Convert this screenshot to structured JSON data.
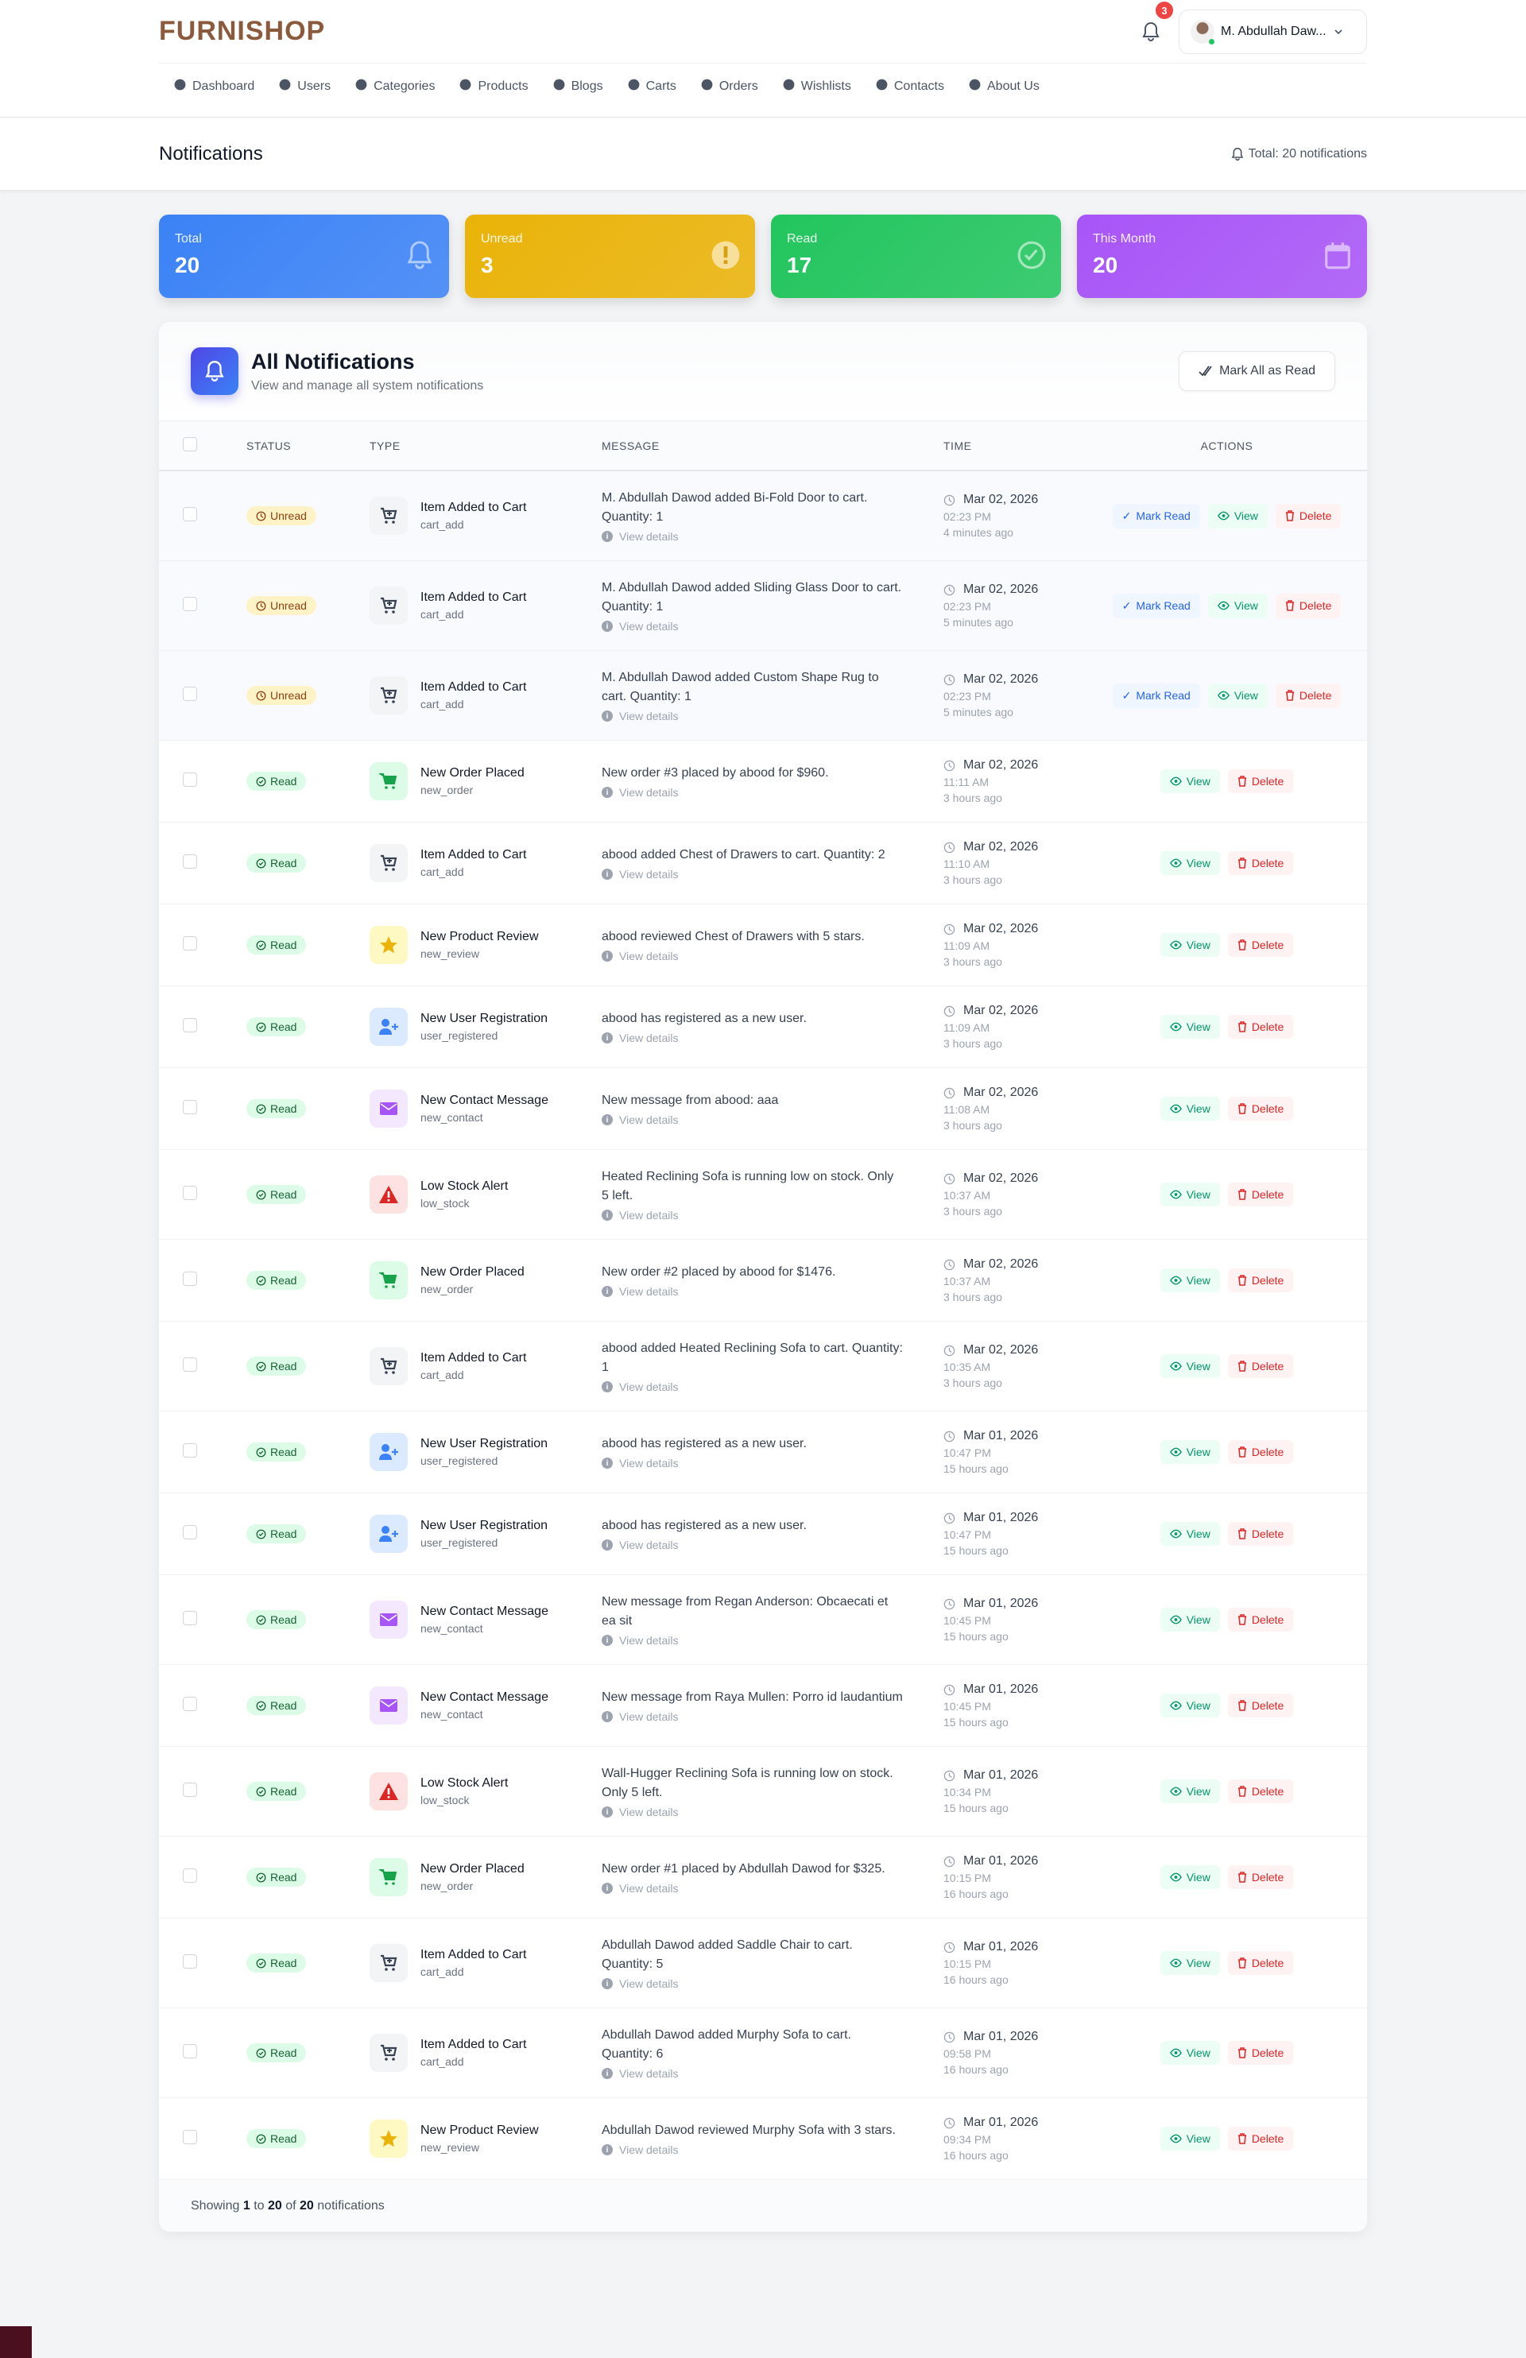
{
  "app": {
    "logo": "FURNISHOP",
    "notif_count": "3",
    "user_name": "M. Abdullah Daw..."
  },
  "nav": [
    {
      "label": "Dashboard",
      "icon": "dashboard-icon"
    },
    {
      "label": "Users",
      "icon": "users-icon"
    },
    {
      "label": "Categories",
      "icon": "categories-icon"
    },
    {
      "label": "Products",
      "icon": "box-icon"
    },
    {
      "label": "Blogs",
      "icon": "edit-icon"
    },
    {
      "label": "Carts",
      "icon": "cart-icon"
    },
    {
      "label": "Orders",
      "icon": "truck-icon"
    },
    {
      "label": "Wishlists",
      "icon": "heart-icon"
    },
    {
      "label": "Contacts",
      "icon": "phone-icon"
    },
    {
      "label": "About Us",
      "icon": "info-icon"
    }
  ],
  "page": {
    "title": "Notifications",
    "total": "Total: 20 notifications"
  },
  "stats": [
    {
      "label": "Total",
      "value": "20",
      "color": "#3b82f6",
      "icon": "bell-icon"
    },
    {
      "label": "Unread",
      "value": "3",
      "color": "#eab308",
      "icon": "exclamation-icon"
    },
    {
      "label": "Read",
      "value": "17",
      "color": "#22c55e",
      "icon": "check-circle-icon"
    },
    {
      "label": "This Month",
      "value": "20",
      "color": "#a855f7",
      "icon": "calendar-icon"
    }
  ],
  "panel": {
    "title": "All Notifications",
    "subtitle": "View and manage all system notifications",
    "mark_all": "Mark All as Read"
  },
  "columns": {
    "status": "STATUS",
    "type": "TYPE",
    "message": "MESSAGE",
    "time": "TIME",
    "actions": "ACTIONS"
  },
  "actions": {
    "mark_read": "Mark Read",
    "view": "View",
    "delete": "Delete",
    "view_details": "View details"
  },
  "rows": [
    {
      "status": "Unread",
      "title": "Item Added to Cart",
      "code": "cart_add",
      "kind": "cart",
      "message": "M. Abdullah Dawod added Bi-Fold Door to cart. Quantity: 1",
      "date": "Mar 02, 2026",
      "time": "02:23 PM",
      "ago": "4 minutes ago"
    },
    {
      "status": "Unread",
      "title": "Item Added to Cart",
      "code": "cart_add",
      "kind": "cart",
      "message": "M. Abdullah Dawod added Sliding Glass Door to cart. Quantity: 1",
      "date": "Mar 02, 2026",
      "time": "02:23 PM",
      "ago": "5 minutes ago"
    },
    {
      "status": "Unread",
      "title": "Item Added to Cart",
      "code": "cart_add",
      "kind": "cart",
      "message": "M. Abdullah Dawod added Custom Shape Rug to cart. Quantity: 1",
      "date": "Mar 02, 2026",
      "time": "02:23 PM",
      "ago": "5 minutes ago"
    },
    {
      "status": "Read",
      "title": "New Order Placed",
      "code": "new_order",
      "kind": "order",
      "message": "New order #3 placed by abood for $960.",
      "date": "Mar 02, 2026",
      "time": "11:11 AM",
      "ago": "3 hours ago"
    },
    {
      "status": "Read",
      "title": "Item Added to Cart",
      "code": "cart_add",
      "kind": "cart",
      "message": "abood added Chest of Drawers to cart. Quantity: 2",
      "date": "Mar 02, 2026",
      "time": "11:10 AM",
      "ago": "3 hours ago"
    },
    {
      "status": "Read",
      "title": "New Product Review",
      "code": "new_review",
      "kind": "review",
      "message": "abood reviewed Chest of Drawers with 5 stars.",
      "date": "Mar 02, 2026",
      "time": "11:09 AM",
      "ago": "3 hours ago"
    },
    {
      "status": "Read",
      "title": "New User Registration",
      "code": "user_registered",
      "kind": "user",
      "message": "abood has registered as a new user.",
      "date": "Mar 02, 2026",
      "time": "11:09 AM",
      "ago": "3 hours ago"
    },
    {
      "status": "Read",
      "title": "New Contact Message",
      "code": "new_contact",
      "kind": "contact",
      "message": "New message from abood: aaa",
      "date": "Mar 02, 2026",
      "time": "11:08 AM",
      "ago": "3 hours ago"
    },
    {
      "status": "Read",
      "title": "Low Stock Alert",
      "code": "low_stock",
      "kind": "stock",
      "message": "Heated Reclining Sofa is running low on stock. Only 5 left.",
      "date": "Mar 02, 2026",
      "time": "10:37 AM",
      "ago": "3 hours ago"
    },
    {
      "status": "Read",
      "title": "New Order Placed",
      "code": "new_order",
      "kind": "order",
      "message": "New order #2 placed by abood for $1476.",
      "date": "Mar 02, 2026",
      "time": "10:37 AM",
      "ago": "3 hours ago"
    },
    {
      "status": "Read",
      "title": "Item Added to Cart",
      "code": "cart_add",
      "kind": "cart",
      "message": "abood added Heated Reclining Sofa to cart. Quantity: 1",
      "date": "Mar 02, 2026",
      "time": "10:35 AM",
      "ago": "3 hours ago"
    },
    {
      "status": "Read",
      "title": "New User Registration",
      "code": "user_registered",
      "kind": "user",
      "message": "abood has registered as a new user.",
      "date": "Mar 01, 2026",
      "time": "10:47 PM",
      "ago": "15 hours ago"
    },
    {
      "status": "Read",
      "title": "New User Registration",
      "code": "user_registered",
      "kind": "user",
      "message": "abood has registered as a new user.",
      "date": "Mar 01, 2026",
      "time": "10:47 PM",
      "ago": "15 hours ago"
    },
    {
      "status": "Read",
      "title": "New Contact Message",
      "code": "new_contact",
      "kind": "contact",
      "message": "New message from Regan Anderson: Obcaecati et ea sit",
      "date": "Mar 01, 2026",
      "time": "10:45 PM",
      "ago": "15 hours ago"
    },
    {
      "status": "Read",
      "title": "New Contact Message",
      "code": "new_contact",
      "kind": "contact",
      "message": "New message from Raya Mullen: Porro id laudantium",
      "date": "Mar 01, 2026",
      "time": "10:45 PM",
      "ago": "15 hours ago"
    },
    {
      "status": "Read",
      "title": "Low Stock Alert",
      "code": "low_stock",
      "kind": "stock",
      "message": "Wall-Hugger Reclining Sofa is running low on stock. Only 5 left.",
      "date": "Mar 01, 2026",
      "time": "10:34 PM",
      "ago": "15 hours ago"
    },
    {
      "status": "Read",
      "title": "New Order Placed",
      "code": "new_order",
      "kind": "order",
      "message": "New order #1 placed by Abdullah Dawod for $325.",
      "date": "Mar 01, 2026",
      "time": "10:15 PM",
      "ago": "16 hours ago"
    },
    {
      "status": "Read",
      "title": "Item Added to Cart",
      "code": "cart_add",
      "kind": "cart",
      "message": "Abdullah Dawod added Saddle Chair to cart. Quantity: 5",
      "date": "Mar 01, 2026",
      "time": "10:15 PM",
      "ago": "16 hours ago"
    },
    {
      "status": "Read",
      "title": "Item Added to Cart",
      "code": "cart_add",
      "kind": "cart",
      "message": "Abdullah Dawod added Murphy Sofa to cart. Quantity: 6",
      "date": "Mar 01, 2026",
      "time": "09:58 PM",
      "ago": "16 hours ago"
    },
    {
      "status": "Read",
      "title": "New Product Review",
      "code": "new_review",
      "kind": "review",
      "message": "Abdullah Dawod reviewed Murphy Sofa with 3 stars.",
      "date": "Mar 01, 2026",
      "time": "09:34 PM",
      "ago": "16 hours ago"
    }
  ],
  "footer": {
    "prefix": "Showing",
    "from": "1",
    "to_word": "to",
    "to": "20",
    "of_word": "of",
    "total": "20",
    "suffix": "notifications"
  },
  "kinds": {
    "cart": {
      "bg": "#f3f4f6",
      "fg": "#374151",
      "icon": "cart-plus-icon"
    },
    "order": {
      "bg": "#dcfce7",
      "fg": "#16a34a",
      "icon": "cart-icon"
    },
    "review": {
      "bg": "#fef9c3",
      "fg": "#eab308",
      "icon": "star-icon"
    },
    "user": {
      "bg": "#dbeafe",
      "fg": "#3b82f6",
      "icon": "user-plus-icon"
    },
    "contact": {
      "bg": "#f3e8ff",
      "fg": "#a855f7",
      "icon": "envelope-icon"
    },
    "stock": {
      "bg": "#fee2e2",
      "fg": "#dc2626",
      "icon": "warning-icon"
    }
  }
}
